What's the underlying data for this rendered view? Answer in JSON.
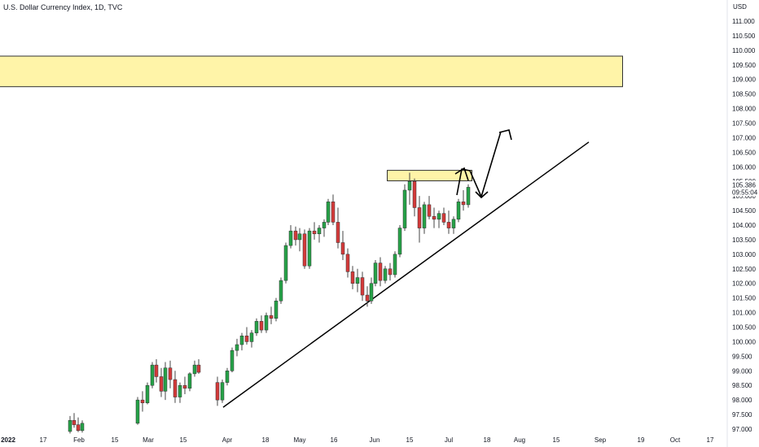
{
  "header": {
    "title": "U.S. Dollar Currency Index, 1D, TVC"
  },
  "price_scale": {
    "currency": "USD",
    "last_price": "105.386",
    "countdown": "09:55:04"
  },
  "colors": {
    "up": "#26a248",
    "down": "#d43a3a",
    "zone_fill": "#fff4a8",
    "zone_stroke": "#333333",
    "line": "#000000"
  },
  "chart_data": {
    "type": "candlestick",
    "title": "U.S. Dollar Currency Index, 1D, TVC",
    "ylim": [
      96.9,
      111.6
    ],
    "y_ticks": [
      "111.000",
      "110.500",
      "110.000",
      "109.500",
      "109.000",
      "108.500",
      "108.000",
      "107.500",
      "107.000",
      "106.500",
      "106.000",
      "105.500",
      "105.000",
      "104.500",
      "104.000",
      "103.500",
      "103.000",
      "102.500",
      "102.000",
      "101.500",
      "101.000",
      "100.500",
      "100.000",
      "99.500",
      "99.000",
      "98.500",
      "98.000",
      "97.500",
      "97.000"
    ],
    "x_ticks": [
      "2022",
      "17",
      "Feb",
      "15",
      "Mar",
      "15",
      "Apr",
      "18",
      "May",
      "16",
      "Jun",
      "15",
      "Jul",
      "18",
      "Aug",
      "15",
      "Sep",
      "19",
      "Oct",
      "17"
    ],
    "candles": [
      {
        "o": 96.92,
        "h": 97.45,
        "l": 96.85,
        "c": 97.3
      },
      {
        "o": 97.3,
        "h": 97.55,
        "l": 97.05,
        "c": 97.15
      },
      {
        "o": 97.15,
        "h": 97.4,
        "l": 96.9,
        "c": 96.95
      },
      {
        "o": 96.95,
        "h": 97.3,
        "l": 96.88,
        "c": 97.2
      },
      {
        "o": 97.2,
        "h": 98.1,
        "l": 97.15,
        "c": 98.0
      },
      {
        "o": 98.0,
        "h": 98.3,
        "l": 97.6,
        "c": 97.9
      },
      {
        "o": 97.9,
        "h": 98.6,
        "l": 97.85,
        "c": 98.5
      },
      {
        "o": 98.5,
        "h": 99.3,
        "l": 98.4,
        "c": 99.2
      },
      {
        "o": 99.2,
        "h": 99.4,
        "l": 98.6,
        "c": 98.8
      },
      {
        "o": 98.8,
        "h": 99.1,
        "l": 98.1,
        "c": 98.3
      },
      {
        "o": 98.3,
        "h": 99.3,
        "l": 98.0,
        "c": 99.1
      },
      {
        "o": 99.1,
        "h": 99.35,
        "l": 98.4,
        "c": 98.7
      },
      {
        "o": 98.7,
        "h": 99.0,
        "l": 97.9,
        "c": 98.1
      },
      {
        "o": 98.1,
        "h": 98.6,
        "l": 97.9,
        "c": 98.5
      },
      {
        "o": 98.5,
        "h": 98.8,
        "l": 98.2,
        "c": 98.4
      },
      {
        "o": 98.4,
        "h": 98.95,
        "l": 98.3,
        "c": 98.9
      },
      {
        "o": 98.9,
        "h": 99.35,
        "l": 98.8,
        "c": 99.2
      },
      {
        "o": 99.2,
        "h": 99.4,
        "l": 98.9,
        "c": 98.95
      },
      {
        "o": 98.6,
        "h": 98.8,
        "l": 97.8,
        "c": 98.0
      },
      {
        "o": 98.0,
        "h": 98.7,
        "l": 97.9,
        "c": 98.6
      },
      {
        "o": 98.6,
        "h": 99.1,
        "l": 98.5,
        "c": 99.0
      },
      {
        "o": 99.0,
        "h": 99.8,
        "l": 98.95,
        "c": 99.7
      },
      {
        "o": 99.7,
        "h": 100.1,
        "l": 99.5,
        "c": 99.9
      },
      {
        "o": 99.9,
        "h": 100.3,
        "l": 99.7,
        "c": 100.2
      },
      {
        "o": 100.2,
        "h": 100.5,
        "l": 99.9,
        "c": 100.0
      },
      {
        "o": 100.0,
        "h": 100.4,
        "l": 99.8,
        "c": 100.3
      },
      {
        "o": 100.3,
        "h": 100.8,
        "l": 100.2,
        "c": 100.7
      },
      {
        "o": 100.7,
        "h": 100.9,
        "l": 100.3,
        "c": 100.4
      },
      {
        "o": 100.4,
        "h": 101.0,
        "l": 100.3,
        "c": 100.9
      },
      {
        "o": 100.9,
        "h": 101.2,
        "l": 100.6,
        "c": 100.8
      },
      {
        "o": 100.8,
        "h": 101.5,
        "l": 100.7,
        "c": 101.4
      },
      {
        "o": 101.4,
        "h": 102.2,
        "l": 101.3,
        "c": 102.1
      },
      {
        "o": 102.1,
        "h": 103.4,
        "l": 102.0,
        "c": 103.3
      },
      {
        "o": 103.3,
        "h": 104.0,
        "l": 103.2,
        "c": 103.8
      },
      {
        "o": 103.8,
        "h": 103.95,
        "l": 103.3,
        "c": 103.5
      },
      {
        "o": 103.5,
        "h": 103.9,
        "l": 103.1,
        "c": 103.7
      },
      {
        "o": 103.7,
        "h": 103.85,
        "l": 102.5,
        "c": 102.6
      },
      {
        "o": 102.6,
        "h": 103.9,
        "l": 102.5,
        "c": 103.8
      },
      {
        "o": 103.8,
        "h": 104.1,
        "l": 103.5,
        "c": 103.7
      },
      {
        "o": 103.7,
        "h": 104.0,
        "l": 103.4,
        "c": 103.9
      },
      {
        "o": 103.9,
        "h": 104.2,
        "l": 103.6,
        "c": 104.1
      },
      {
        "o": 104.1,
        "h": 104.9,
        "l": 104.0,
        "c": 104.8
      },
      {
        "o": 104.8,
        "h": 105.05,
        "l": 104.0,
        "c": 104.1
      },
      {
        "o": 104.1,
        "h": 104.6,
        "l": 103.2,
        "c": 103.4
      },
      {
        "o": 103.4,
        "h": 103.8,
        "l": 102.8,
        "c": 103.0
      },
      {
        "o": 103.0,
        "h": 103.2,
        "l": 102.2,
        "c": 102.4
      },
      {
        "o": 102.4,
        "h": 102.6,
        "l": 101.8,
        "c": 102.0
      },
      {
        "o": 102.0,
        "h": 102.5,
        "l": 101.7,
        "c": 102.2
      },
      {
        "o": 102.2,
        "h": 102.4,
        "l": 101.4,
        "c": 101.6
      },
      {
        "o": 101.6,
        "h": 101.9,
        "l": 101.2,
        "c": 101.4
      },
      {
        "o": 101.4,
        "h": 102.2,
        "l": 101.3,
        "c": 102.0
      },
      {
        "o": 102.0,
        "h": 102.8,
        "l": 101.9,
        "c": 102.7
      },
      {
        "o": 102.7,
        "h": 102.9,
        "l": 101.9,
        "c": 102.1
      },
      {
        "o": 102.1,
        "h": 102.6,
        "l": 102.0,
        "c": 102.5
      },
      {
        "o": 102.5,
        "h": 102.7,
        "l": 102.1,
        "c": 102.3
      },
      {
        "o": 102.3,
        "h": 103.1,
        "l": 102.2,
        "c": 103.0
      },
      {
        "o": 103.0,
        "h": 104.0,
        "l": 102.9,
        "c": 103.9
      },
      {
        "o": 103.9,
        "h": 105.4,
        "l": 103.8,
        "c": 105.2
      },
      {
        "o": 105.2,
        "h": 105.8,
        "l": 104.7,
        "c": 105.5
      },
      {
        "o": 105.5,
        "h": 105.6,
        "l": 104.3,
        "c": 104.6
      },
      {
        "o": 104.6,
        "h": 105.0,
        "l": 103.4,
        "c": 103.9
      },
      {
        "o": 103.9,
        "h": 104.8,
        "l": 103.7,
        "c": 104.7
      },
      {
        "o": 104.7,
        "h": 105.0,
        "l": 104.2,
        "c": 104.3
      },
      {
        "o": 104.3,
        "h": 104.6,
        "l": 103.9,
        "c": 104.2
      },
      {
        "o": 104.2,
        "h": 104.5,
        "l": 103.9,
        "c": 104.4
      },
      {
        "o": 104.4,
        "h": 104.6,
        "l": 104.0,
        "c": 104.1
      },
      {
        "o": 104.1,
        "h": 104.5,
        "l": 103.7,
        "c": 103.9
      },
      {
        "o": 103.9,
        "h": 104.3,
        "l": 103.7,
        "c": 104.2
      },
      {
        "o": 104.2,
        "h": 104.9,
        "l": 104.1,
        "c": 104.8
      },
      {
        "o": 104.8,
        "h": 105.2,
        "l": 104.5,
        "c": 104.7
      },
      {
        "o": 104.7,
        "h": 105.4,
        "l": 104.6,
        "c": 105.3
      }
    ],
    "annotations": [
      {
        "type": "zone",
        "price_top": 109.8,
        "price_bottom": 108.75
      },
      {
        "type": "zone",
        "price_top": 105.88,
        "price_bottom": 105.52
      },
      {
        "type": "trendline",
        "from_price": 97.75,
        "to_price": 106.85
      }
    ]
  }
}
